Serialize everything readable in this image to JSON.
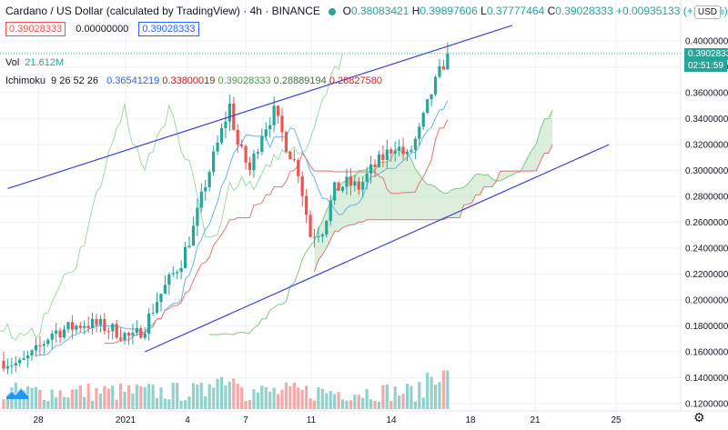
{
  "header": {
    "title": "Cardano / US Dollar (calculated by TradingView) · 4h · BINANCE",
    "open_label": "O",
    "open": "0.38083421",
    "high_label": "H",
    "high": "0.39897606",
    "low_label": "L",
    "low": "0.37777464",
    "close_label": "C",
    "close": "0.39028333",
    "change": "+0.00935133 (+2.45%)",
    "sell_price": "0.39028333",
    "spread": "0.00000000",
    "buy_price": "0.39028333"
  },
  "volume": {
    "label": "Vol",
    "value": "21.612M"
  },
  "ichimoku": {
    "label": "Ichimoku",
    "params": "9 26 52 26",
    "values": [
      "0.36541219",
      "0.33800019",
      "0.39028333",
      "0.28889194",
      "0.28827580"
    ]
  },
  "currency_label": "USD",
  "last_price_tag": "0.39028333",
  "countdown_tag": "02:51:59",
  "colors": {
    "up": "#26a69a",
    "down": "#ef5350",
    "trendline": "#3f3fd8",
    "cloud": "#a5d6a7"
  },
  "icons": {
    "logo": "tradingview-logo-icon",
    "settings": "gear-icon"
  },
  "chart_data": {
    "type": "candlestick",
    "symbol": "ADAUSD",
    "interval": "4h",
    "price_axis_ticks": [
      "0.40000000",
      "0.38000000",
      "0.36000000",
      "0.34000000",
      "0.32000000",
      "0.30000000",
      "0.28000000",
      "0.26000000",
      "0.24000000",
      "0.22000000",
      "0.20000000",
      "0.18000000",
      "0.16000000",
      "0.14000000",
      "0.12000000"
    ],
    "time_axis_ticks": [
      "28",
      "2021",
      "4",
      "7",
      "11",
      "14",
      "18",
      "21",
      "25"
    ],
    "ylim": [
      0.12,
      0.41
    ],
    "close_path": [
      [
        0,
        0.153
      ],
      [
        4,
        0.15
      ],
      [
        8,
        0.16
      ],
      [
        12,
        0.175
      ],
      [
        16,
        0.178
      ],
      [
        20,
        0.182
      ],
      [
        24,
        0.18
      ],
      [
        28,
        0.176
      ],
      [
        32,
        0.17
      ],
      [
        35,
        0.18
      ],
      [
        38,
        0.2
      ],
      [
        41,
        0.215
      ],
      [
        44,
        0.23
      ],
      [
        47,
        0.255
      ],
      [
        50,
        0.29
      ],
      [
        53,
        0.32
      ],
      [
        56,
        0.35
      ],
      [
        58,
        0.32
      ],
      [
        61,
        0.3
      ],
      [
        64,
        0.33
      ],
      [
        67,
        0.345
      ],
      [
        70,
        0.32
      ],
      [
        73,
        0.3
      ],
      [
        76,
        0.25
      ],
      [
        79,
        0.255
      ],
      [
        82,
        0.285
      ],
      [
        85,
        0.29
      ],
      [
        88,
        0.287
      ],
      [
        91,
        0.3
      ],
      [
        94,
        0.31
      ],
      [
        97,
        0.32
      ],
      [
        100,
        0.31
      ],
      [
        103,
        0.33
      ],
      [
        106,
        0.36
      ],
      [
        108,
        0.375
      ],
      [
        110,
        0.39
      ]
    ],
    "trendlines": [
      {
        "from": [
          1,
          0.286
        ],
        "to": [
          126,
          0.412
        ]
      },
      {
        "from": [
          35,
          0.16
        ],
        "to": [
          150,
          0.32
        ]
      }
    ]
  }
}
